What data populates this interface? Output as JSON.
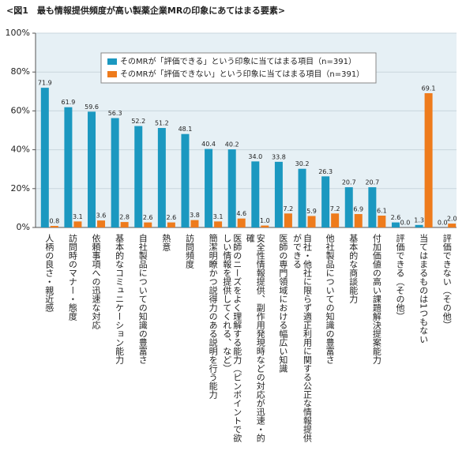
{
  "chart_data": {
    "type": "bar",
    "title": "<図1　最も情報提供頻度が高い製薬企業MRの印象にあてはまる要素>",
    "categories": [
      "人柄の良さ・親近感",
      "訪問時のマナー・態度",
      "依頼事項への迅速な対応",
      "基本的なコミュニケーション能力",
      "自社製品についての知識の豊富さ",
      "熱意",
      "訪問頻度",
      "簡潔明瞭かつ説得力のある説明を行う能力",
      "医師のニーズをよく理解する能力（ピンポイントで欲しい情報を提供してくれる、など）",
      "安全性情報提供、副作用発現時などの対応が迅速・的確",
      "医師の専門領域における幅広い知識",
      "自社・他社に限らず適正利用に関する公正な情報提供ができる",
      "他社製品についての知識の豊富さ",
      "基本的な商談能力",
      "付加価値の高い課題解決提案能力",
      "評価できる（その他）",
      "当てはまるものは1つもない",
      "評価できない（その他）"
    ],
    "series": [
      {
        "name": "そのMRが「評価できる」という印象に当てはまる項目（n=391）",
        "color": "#1b98c0",
        "values": [
          71.9,
          61.9,
          59.6,
          56.3,
          52.2,
          51.2,
          48.1,
          40.4,
          40.2,
          34.0,
          33.8,
          30.2,
          26.3,
          20.7,
          20.7,
          2.6,
          1.3,
          0.0
        ],
        "value_labels": [
          "71.9",
          "61.9",
          "59.6",
          "56.3",
          "52.2",
          "51.2",
          "48.1",
          "40.4",
          "40.2",
          "34.0",
          "33.8",
          "30.2",
          "26.3",
          "20.7",
          "20.7",
          "2.6",
          "1.3",
          "0.0"
        ]
      },
      {
        "name": "そのMRが「評価できない」という印象に当てはまる項目（n=391）",
        "color": "#ee7b1c",
        "values": [
          0.8,
          3.1,
          3.6,
          2.8,
          2.6,
          2.6,
          3.8,
          3.1,
          4.6,
          1.0,
          7.2,
          5.9,
          7.2,
          6.9,
          6.1,
          0.0,
          69.1,
          2.0
        ],
        "value_labels": [
          "0.8",
          "3.1",
          "3.6",
          "2.8",
          "2.6",
          "2.6",
          "3.8",
          "3.1",
          "4.6",
          "1.0",
          "7.2",
          "5.9",
          "7.2",
          "6.9",
          "6.1",
          "0.0",
          "69.1",
          "2.0"
        ]
      }
    ],
    "ylim": [
      0,
      100
    ],
    "yticks": [
      {
        "value": 0,
        "label": "0%"
      },
      {
        "value": 20,
        "label": "20%"
      },
      {
        "value": 40,
        "label": "40%"
      },
      {
        "value": 60,
        "label": "60%"
      },
      {
        "value": 80,
        "label": "80%"
      },
      {
        "value": 100,
        "label": "100%"
      }
    ],
    "grid": true
  }
}
